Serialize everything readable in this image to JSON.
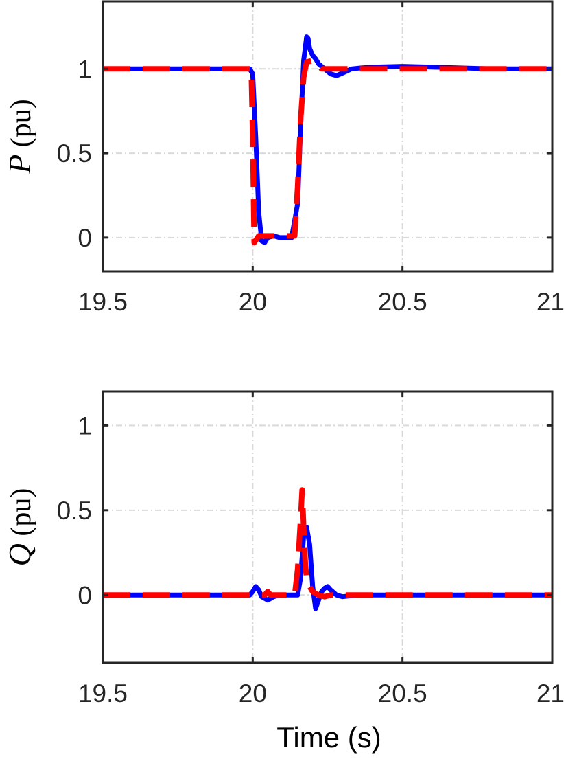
{
  "chart_data": [
    {
      "type": "line",
      "ylabel_symbol": "P",
      "ylabel_unit": "(pu)",
      "xlabel": "",
      "xlim": [
        19.5,
        21
      ],
      "ylim": [
        -0.2,
        1.4
      ],
      "xticks": [
        19.5,
        20,
        20.5,
        21
      ],
      "xtick_labels": [
        "19.5",
        "20",
        "20.5",
        "21"
      ],
      "yticks": [
        0,
        0.5,
        1
      ],
      "ytick_labels": [
        "0",
        "0.5",
        "1"
      ],
      "grid": true,
      "series": [
        {
          "color": "#0000ff",
          "style": "solid",
          "x": [
            19.5,
            19.99,
            20.0,
            20.01,
            20.02,
            20.03,
            20.04,
            20.05,
            20.07,
            20.09,
            20.11,
            20.13,
            20.15,
            20.16,
            20.17,
            20.18,
            20.185,
            20.19,
            20.2,
            20.21,
            20.22,
            20.24,
            20.26,
            20.28,
            20.3,
            20.33,
            20.36,
            20.4,
            20.5,
            20.6,
            20.7,
            20.8,
            21.0
          ],
          "y": [
            1.0,
            1.0,
            0.97,
            0.6,
            0.15,
            -0.02,
            -0.03,
            0.0,
            0.01,
            0.0,
            0.0,
            0.0,
            0.2,
            0.65,
            1.05,
            1.19,
            1.18,
            1.12,
            1.08,
            1.06,
            1.03,
            1.0,
            0.97,
            0.96,
            0.975,
            1.0,
            1.005,
            1.01,
            1.015,
            1.01,
            1.005,
            1.0,
            1.0
          ]
        },
        {
          "color": "#ff0000",
          "style": "dashed",
          "x": [
            19.5,
            19.995,
            20.0,
            20.005,
            20.02,
            20.06,
            20.1,
            20.14,
            20.15,
            20.16,
            20.17,
            20.18,
            20.2,
            20.23,
            20.26,
            20.3,
            20.4,
            21.0
          ],
          "y": [
            1.0,
            1.0,
            0.6,
            -0.03,
            0.01,
            0.01,
            0.01,
            0.01,
            0.3,
            0.7,
            0.95,
            1.04,
            1.05,
            1.0,
            1.0,
            1.0,
            1.0,
            1.0
          ]
        }
      ]
    },
    {
      "type": "line",
      "ylabel_symbol": "Q",
      "ylabel_unit": "(pu)",
      "xlabel": "Time (s)",
      "xlim": [
        19.5,
        21
      ],
      "ylim": [
        -0.4,
        1.2
      ],
      "xticks": [
        19.5,
        20,
        20.5,
        21
      ],
      "xtick_labels": [
        "19.5",
        "20",
        "20.5",
        "21"
      ],
      "yticks": [
        0,
        0.5,
        1
      ],
      "ytick_labels": [
        "0",
        "0.5",
        "1"
      ],
      "grid": true,
      "series": [
        {
          "color": "#0000ff",
          "style": "solid",
          "x": [
            19.5,
            19.99,
            20.0,
            20.01,
            20.02,
            20.03,
            20.05,
            20.07,
            20.09,
            20.11,
            20.13,
            20.15,
            20.16,
            20.17,
            20.18,
            20.19,
            20.2,
            20.21,
            20.22,
            20.23,
            20.24,
            20.25,
            20.26,
            20.28,
            20.3,
            20.35,
            20.4,
            21.0
          ],
          "y": [
            0.0,
            0.0,
            0.02,
            0.05,
            0.03,
            -0.01,
            -0.03,
            -0.01,
            0.0,
            0.0,
            0.0,
            0.0,
            0.1,
            0.35,
            0.4,
            0.3,
            0.05,
            -0.08,
            -0.03,
            0.02,
            0.04,
            0.05,
            0.03,
            0.0,
            -0.01,
            0.0,
            0.0,
            0.0
          ]
        },
        {
          "color": "#ff0000",
          "style": "dashed",
          "x": [
            19.5,
            20.04,
            20.05,
            20.06,
            20.14,
            20.15,
            20.16,
            20.165,
            20.17,
            20.175,
            20.18,
            20.19,
            20.2,
            20.22,
            20.24,
            20.26,
            20.3,
            20.4,
            21.0
          ],
          "y": [
            0.0,
            0.0,
            0.02,
            0.0,
            0.0,
            0.15,
            0.45,
            0.62,
            0.4,
            0.2,
            0.1,
            0.05,
            0.02,
            0.0,
            -0.01,
            0.0,
            0.0,
            0.0,
            0.0
          ]
        }
      ]
    }
  ]
}
